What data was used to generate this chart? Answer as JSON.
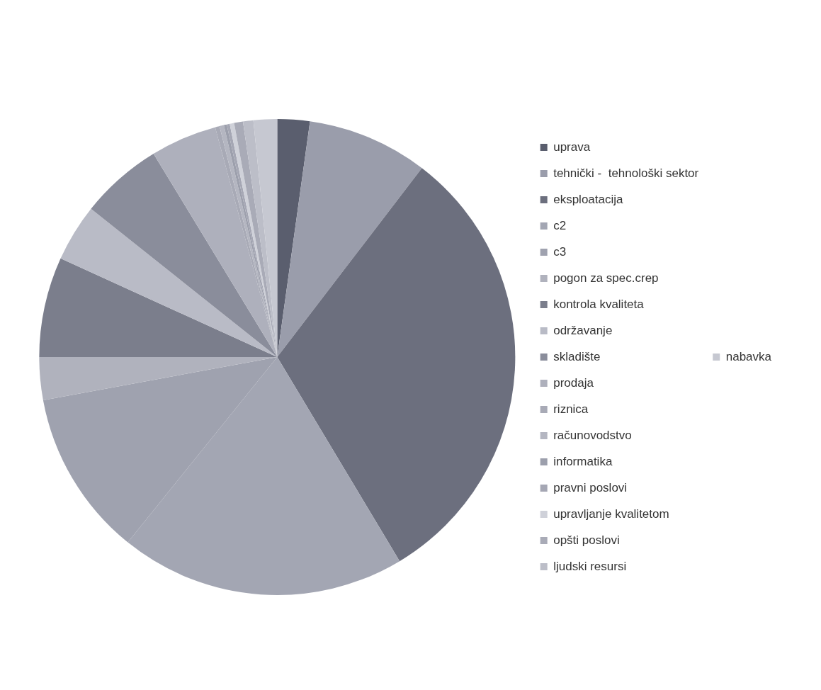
{
  "chart_data": {
    "type": "pie",
    "categories": [
      "uprava",
      "tehnički -  tehnološki sektor",
      "eksploatacija",
      "c2",
      "c3",
      "pogon za spec.crep",
      "kontrola kvaliteta",
      "održavanje",
      "skladište",
      "prodaja",
      "riznica",
      "računovodstvo",
      "informatika",
      "pravni poslovi",
      "upravljanje kvalitetom",
      "opšti poslovi",
      "ljudski resursi",
      "nabavka"
    ],
    "values": [
      2.2,
      8.2,
      31,
      19.4,
      11.3,
      2.9,
      6.8,
      3.9,
      5.6,
      4.5,
      0.3,
      0.3,
      0.2,
      0.2,
      0.3,
      0.6,
      0.7,
      1.6
    ],
    "colors": [
      "#5a5e6e",
      "#9a9dab",
      "#6c6f7e",
      "#a3a6b3",
      "#9fa2af",
      "#b0b2bd",
      "#7b7e8c",
      "#b9bbc6",
      "#8a8d9b",
      "#aeb0bc",
      "#a8aab6",
      "#b4b6c1",
      "#9c9fac",
      "#a5a7b4",
      "#cfd1d9",
      "#a9abb7",
      "#bcbec8",
      "#c6c8d1"
    ],
    "legend": "right"
  }
}
